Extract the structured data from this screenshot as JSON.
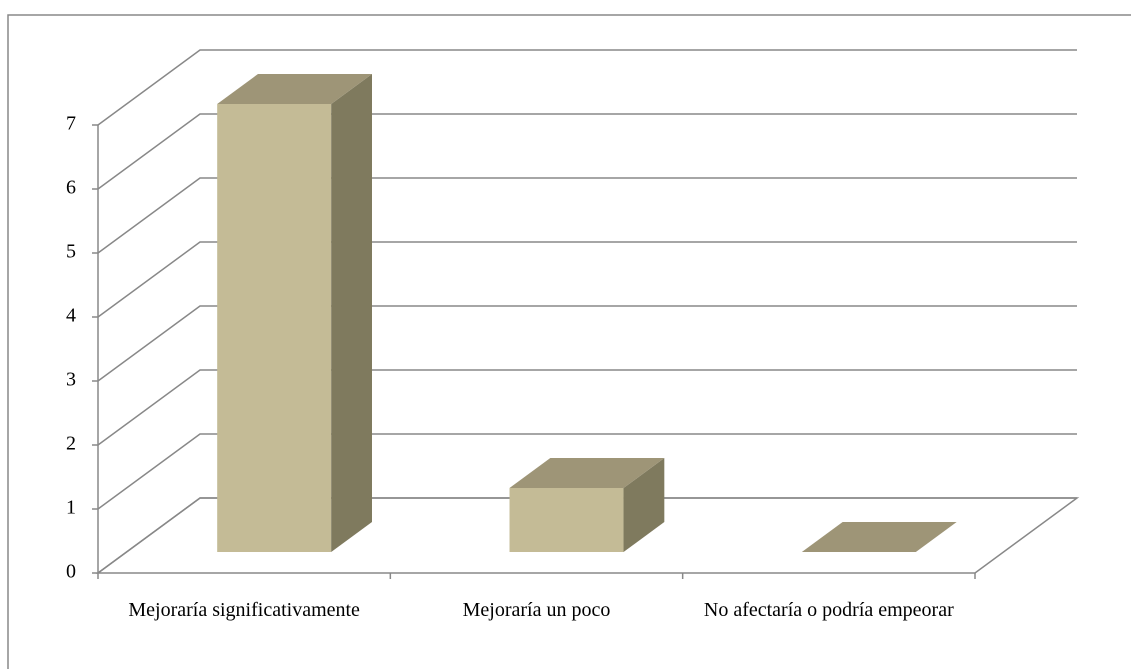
{
  "chart_data": {
    "type": "bar3d",
    "categories": [
      "Mejoraría significativamente",
      "Mejoraría un poco",
      "No afectaría o podría empeorar"
    ],
    "values": [
      7,
      1,
      0
    ],
    "color": "#c4bb96",
    "ylim": [
      0,
      7
    ],
    "yticks": [
      0,
      1,
      2,
      3,
      4,
      5,
      6,
      7
    ],
    "grid": true
  }
}
